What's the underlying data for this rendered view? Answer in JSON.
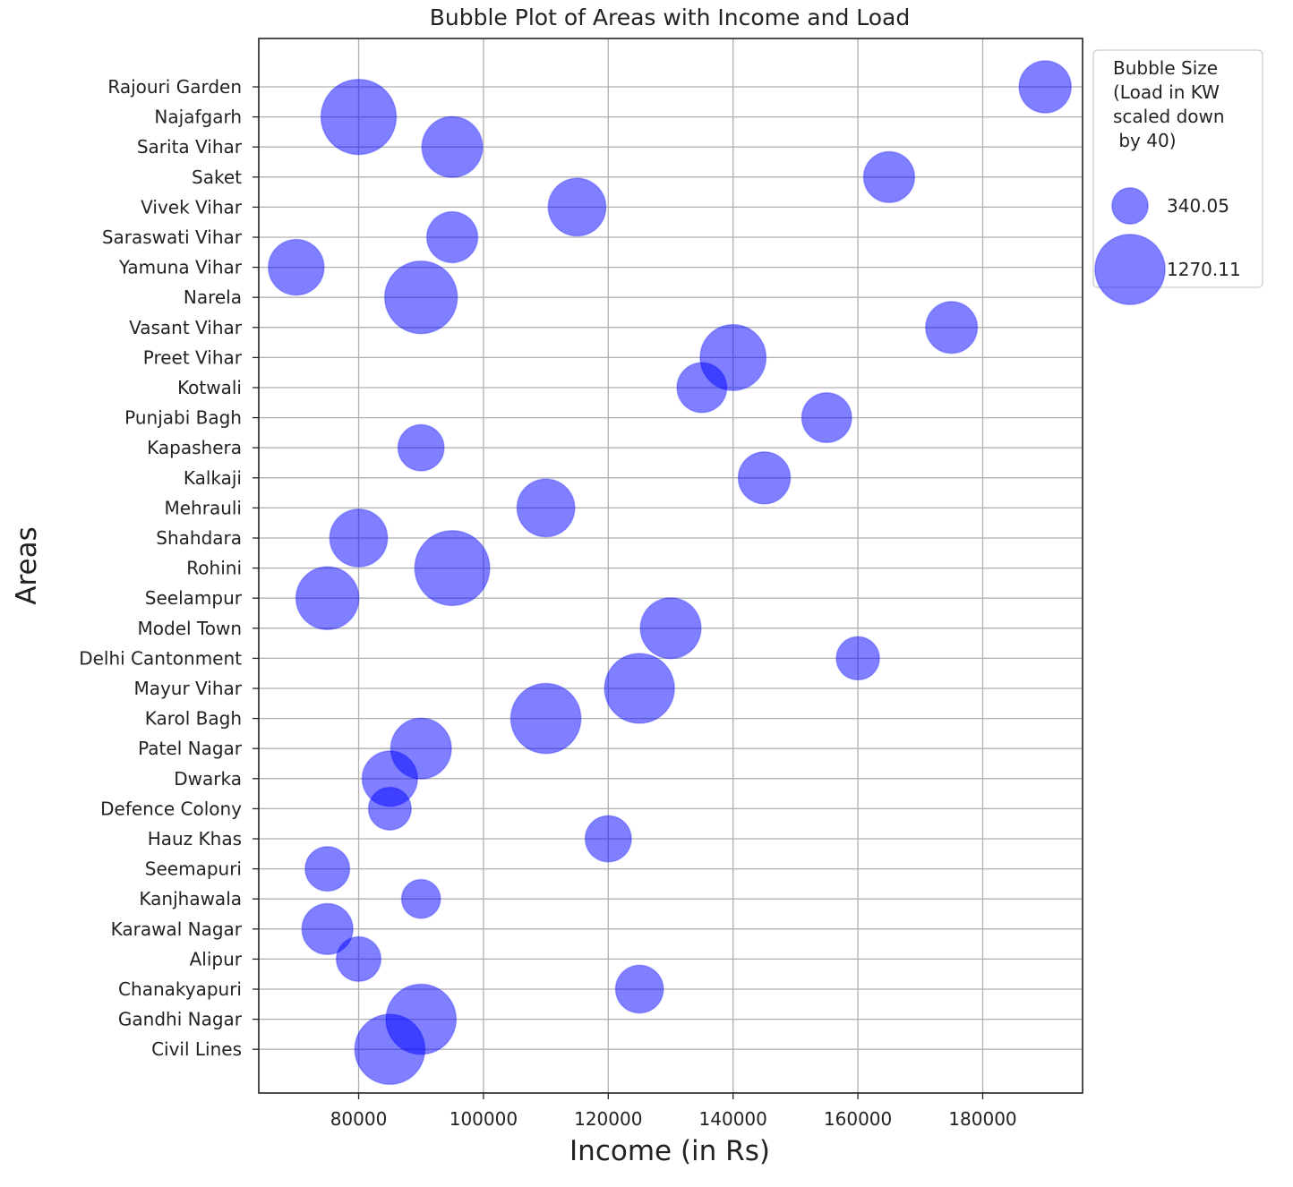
{
  "chart_data": {
    "type": "scatter",
    "title": "Bubble Plot of Areas with Income and Load",
    "xlabel": "Income (in Rs)",
    "ylabel": "Areas",
    "xlim": [
      64000,
      196000
    ],
    "x_ticks": [
      80000,
      100000,
      120000,
      140000,
      160000,
      180000
    ],
    "grid": true,
    "bubble_color": "#0000ff",
    "bubble_alpha": 0.5,
    "legend": {
      "placement": "outside-top-right",
      "title_lines": [
        "Bubble Size",
        "(Load in KW",
        "scaled down",
        " by 40)"
      ],
      "entries": [
        "340.05",
        "1270.11"
      ],
      "entry_sizes": [
        340.05,
        1270.11
      ]
    },
    "categories": [
      "Civil Lines",
      "Gandhi Nagar",
      "Chanakyapuri",
      "Alipur",
      "Karawal Nagar",
      "Kanjhawala",
      "Seemapuri",
      "Hauz Khas",
      "Defence Colony",
      "Dwarka",
      "Patel Nagar",
      "Karol Bagh",
      "Mayur Vihar",
      "Delhi Cantonment",
      "Model Town",
      "Seelampur",
      "Rohini",
      "Shahdara",
      "Mehrauli",
      "Kalkaji",
      "Kapashera",
      "Punjabi Bagh",
      "Kotwali",
      "Preet Vihar",
      "Vasant Vihar",
      "Narela",
      "Yamuna Vihar",
      "Saraswati Vihar",
      "Vivek Vihar",
      "Saket",
      "Sarita Vihar",
      "Najafgarh",
      "Rajouri Garden"
    ],
    "points": [
      {
        "area": "Civil Lines",
        "income": 85000,
        "size": 1270
      },
      {
        "area": "Gandhi Nagar",
        "income": 90000,
        "size": 1270
      },
      {
        "area": "Chanakyapuri",
        "income": 125000,
        "size": 590
      },
      {
        "area": "Alipur",
        "income": 80000,
        "size": 510
      },
      {
        "area": "Karawal Nagar",
        "income": 75000,
        "size": 670
      },
      {
        "area": "Kanjhawala",
        "income": 90000,
        "size": 390
      },
      {
        "area": "Seemapuri",
        "income": 75000,
        "size": 510
      },
      {
        "area": "Hauz Khas",
        "income": 120000,
        "size": 550
      },
      {
        "area": "Defence Colony",
        "income": 85000,
        "size": 470
      },
      {
        "area": "Dwarka",
        "income": 85000,
        "size": 790
      },
      {
        "area": "Patel Nagar",
        "income": 90000,
        "size": 950
      },
      {
        "area": "Karol Bagh",
        "income": 110000,
        "size": 1270
      },
      {
        "area": "Mayur Vihar",
        "income": 125000,
        "size": 1260
      },
      {
        "area": "Delhi Cantonment",
        "income": 160000,
        "size": 480
      },
      {
        "area": "Model Town",
        "income": 130000,
        "size": 950
      },
      {
        "area": "Seelampur",
        "income": 75000,
        "size": 1020
      },
      {
        "area": "Rohini",
        "income": 95000,
        "size": 1450
      },
      {
        "area": "Shahdara",
        "income": 80000,
        "size": 860
      },
      {
        "area": "Mehrauli",
        "income": 110000,
        "size": 860
      },
      {
        "area": "Kalkaji",
        "income": 145000,
        "size": 700
      },
      {
        "area": "Kapashera",
        "income": 90000,
        "size": 550
      },
      {
        "area": "Punjabi Bagh",
        "income": 155000,
        "size": 640
      },
      {
        "area": "Kotwali",
        "income": 135000,
        "size": 640
      },
      {
        "area": "Preet Vihar",
        "income": 140000,
        "size": 1120
      },
      {
        "area": "Vasant Vihar",
        "income": 175000,
        "size": 690
      },
      {
        "area": "Narela",
        "income": 90000,
        "size": 1360
      },
      {
        "area": "Yamuna Vihar",
        "income": 70000,
        "size": 800
      },
      {
        "area": "Saraswati Vihar",
        "income": 95000,
        "size": 670
      },
      {
        "area": "Vivek Vihar",
        "income": 115000,
        "size": 860
      },
      {
        "area": "Saket",
        "income": 165000,
        "size": 670
      },
      {
        "area": "Sarita Vihar",
        "income": 95000,
        "size": 950
      },
      {
        "area": "Najafgarh",
        "income": 80000,
        "size": 1460
      },
      {
        "area": "Rajouri Garden",
        "income": 190000,
        "size": 700
      }
    ]
  }
}
